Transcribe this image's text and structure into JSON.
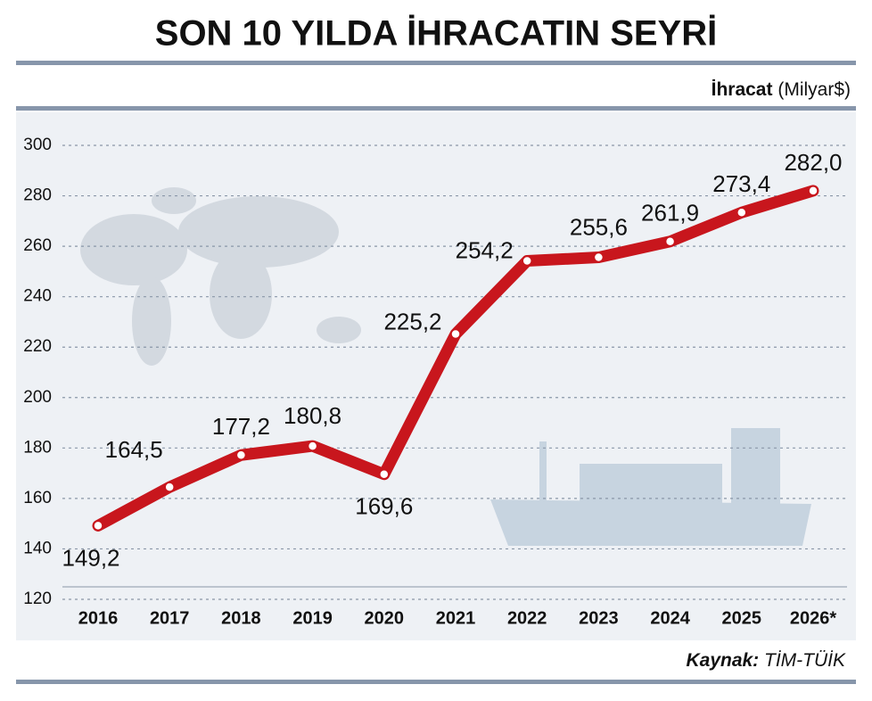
{
  "chart_data": {
    "type": "line",
    "title": "SON 10 YILDA İHRACATIN SEYRİ",
    "y_label": "İhracat",
    "y_unit": "(Milyar$)",
    "source": {
      "label": "Kaynak:",
      "text": "TİM-TÜİK"
    },
    "categories": [
      "2016",
      "2017",
      "2018",
      "2019",
      "2020",
      "2021",
      "2022",
      "2023",
      "2024",
      "2025",
      "2026*"
    ],
    "values": [
      149.2,
      164.5,
      177.2,
      180.8,
      169.6,
      225.2,
      254.2,
      255.6,
      261.9,
      273.4,
      282.0
    ],
    "value_labels": [
      "149,2",
      "164,5",
      "177,2",
      "180,8",
      "169,6",
      "225,2",
      "254,2",
      "255,6",
      "261,9",
      "273,4",
      "282,0"
    ],
    "color": "#c8161d",
    "ylim": [
      120,
      300
    ],
    "yticks": [
      120,
      140,
      160,
      180,
      200,
      220,
      240,
      260,
      280,
      300
    ],
    "grid": true
  }
}
